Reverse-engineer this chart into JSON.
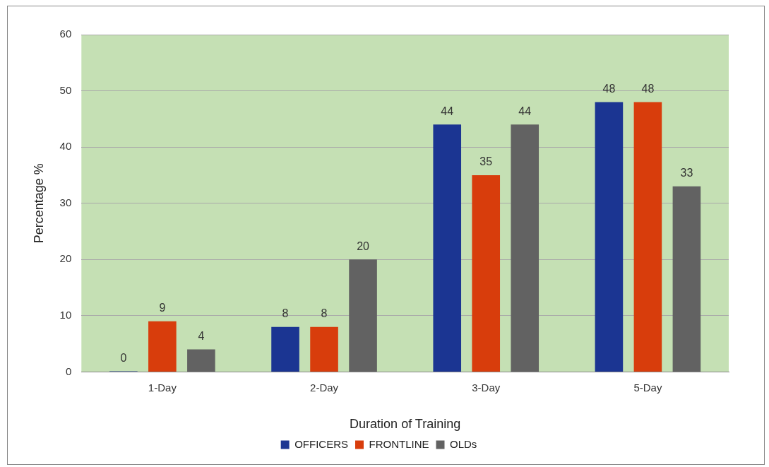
{
  "chart_data": {
    "type": "bar",
    "xlabel": "Duration of Training",
    "ylabel": "Percentage %",
    "categories": [
      "1-Day",
      "2-Day",
      "3-Day",
      "5-Day"
    ],
    "series": [
      {
        "name": "OFFICERS",
        "color": "#1b3592",
        "values": [
          0,
          8,
          44,
          48
        ]
      },
      {
        "name": "FRONTLINE",
        "color": "#d83d0c",
        "values": [
          9,
          8,
          35,
          48
        ]
      },
      {
        "name": "OLDs",
        "color": "#626262",
        "values": [
          4,
          20,
          44,
          33
        ]
      }
    ],
    "ylim": [
      0,
      60
    ],
    "yticks": [
      0,
      10,
      20,
      30,
      40,
      50,
      60
    ],
    "grid": "y",
    "legend": "bottom",
    "data_labels": true
  }
}
